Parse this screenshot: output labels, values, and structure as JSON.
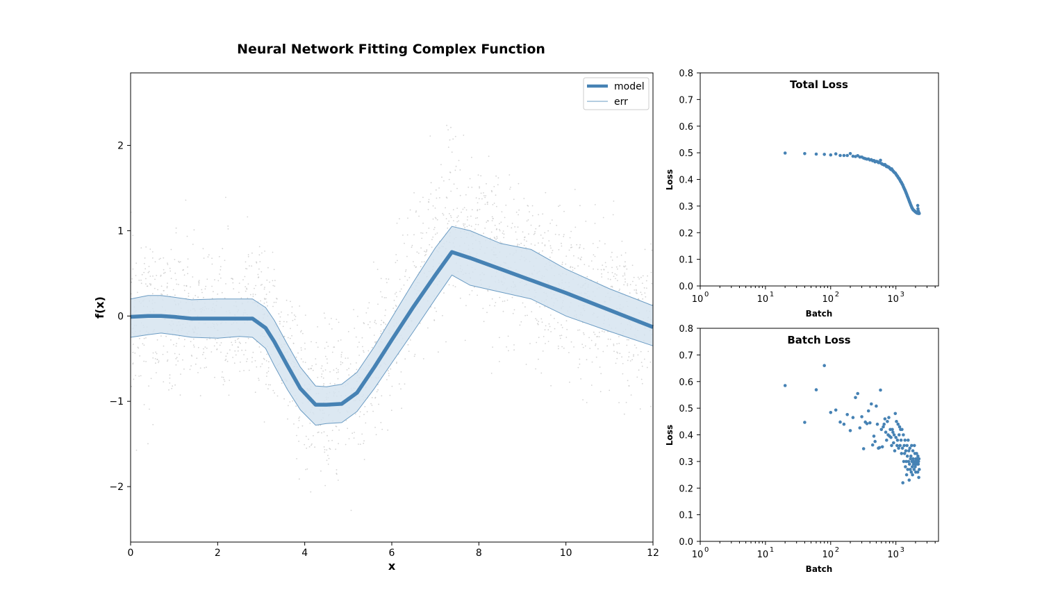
{
  "colors": {
    "model": "#4682b4",
    "band_fill": "#d6e4f0",
    "band_edge": "#6a9bc3",
    "scatter": "#c8c8c8",
    "loss_points": "#4682b4"
  },
  "chart_data": [
    {
      "id": "main",
      "type": "line",
      "title": "Neural Network Fitting Complex Function",
      "xlabel": "x",
      "ylabel": "f(x)",
      "xlim": [
        0,
        12
      ],
      "ylim": [
        -2.65,
        2.85
      ],
      "xticks": [
        "0",
        "2",
        "4",
        "6",
        "8",
        "10",
        "12"
      ],
      "yticks": [
        "−2",
        "−1",
        "0",
        "1",
        "2"
      ],
      "grid": false,
      "legend": {
        "placement": "top-right",
        "entries": [
          "model",
          "err"
        ]
      },
      "series": [
        {
          "name": "model",
          "x": [
            0,
            0.4,
            0.7,
            1.0,
            1.4,
            2.0,
            2.5,
            2.8,
            3.1,
            3.3,
            3.6,
            3.9,
            4.25,
            4.5,
            4.85,
            5.2,
            5.6,
            6.0,
            6.5,
            7.0,
            7.38,
            7.8,
            8.5,
            9.2,
            10.0,
            11.0,
            12.0
          ],
          "y": [
            -0.01,
            0.0,
            0.0,
            -0.01,
            -0.03,
            -0.03,
            -0.03,
            -0.03,
            -0.14,
            -0.3,
            -0.58,
            -0.85,
            -1.04,
            -1.04,
            -1.03,
            -0.9,
            -0.6,
            -0.28,
            0.11,
            0.48,
            0.75,
            0.68,
            0.55,
            0.42,
            0.27,
            0.07,
            -0.13
          ]
        },
        {
          "name": "err",
          "x": [
            0,
            0.4,
            0.7,
            1.0,
            1.4,
            2.0,
            2.5,
            2.8,
            3.1,
            3.3,
            3.6,
            3.9,
            4.25,
            4.5,
            4.85,
            5.2,
            5.6,
            6.0,
            6.5,
            7.0,
            7.38,
            7.8,
            8.5,
            9.2,
            10.0,
            11.0,
            12.0
          ],
          "upper": [
            0.2,
            0.24,
            0.24,
            0.22,
            0.19,
            0.2,
            0.2,
            0.2,
            0.1,
            -0.05,
            -0.33,
            -0.6,
            -0.82,
            -0.83,
            -0.8,
            -0.66,
            -0.36,
            -0.02,
            0.4,
            0.8,
            1.05,
            1.0,
            0.85,
            0.78,
            0.55,
            0.32,
            0.12
          ],
          "lower": [
            -0.25,
            -0.22,
            -0.2,
            -0.22,
            -0.25,
            -0.26,
            -0.24,
            -0.25,
            -0.38,
            -0.58,
            -0.86,
            -1.1,
            -1.28,
            -1.26,
            -1.25,
            -1.12,
            -0.85,
            -0.55,
            -0.18,
            0.2,
            0.48,
            0.36,
            0.28,
            0.2,
            0.0,
            -0.18,
            -0.35
          ]
        }
      ]
    },
    {
      "id": "total",
      "type": "scatter",
      "title": "Total Loss",
      "xlabel": "Batch",
      "ylabel": "Loss",
      "xscale": "log",
      "xlim": [
        1,
        4500
      ],
      "ylim": [
        0,
        0.8
      ],
      "xticks": [
        "10",
        "10",
        "10",
        "10"
      ],
      "xtick_exponents": [
        "0",
        "1",
        "2",
        "3"
      ],
      "yticks": [
        "0.0",
        "0.1",
        "0.2",
        "0.3",
        "0.4",
        "0.5",
        "0.6",
        "0.7",
        "0.8"
      ],
      "x": [
        20,
        40,
        60,
        80,
        100,
        120,
        140,
        160,
        180,
        200,
        220,
        240,
        260,
        280,
        300,
        320,
        340,
        360,
        380,
        400,
        420,
        440,
        460,
        480,
        500,
        520,
        540,
        560,
        580,
        600,
        620,
        640,
        660,
        680,
        700,
        720,
        740,
        760,
        780,
        800,
        820,
        840,
        860,
        880,
        900,
        920,
        940,
        960,
        980,
        1000,
        1020,
        1040,
        1060,
        1080,
        1100,
        1120,
        1140,
        1160,
        1180,
        1200,
        1220,
        1240,
        1260,
        1280,
        1300,
        1320,
        1340,
        1360,
        1380,
        1400,
        1420,
        1440,
        1460,
        1480,
        1500,
        1520,
        1540,
        1560,
        1580,
        1600,
        1620,
        1640,
        1660,
        1680,
        1700,
        1720,
        1740,
        1760,
        1780,
        1800,
        1820,
        1840,
        1860,
        1880,
        1900,
        1920,
        1940,
        1960,
        1980,
        2000,
        2020,
        2040,
        2060,
        2080,
        2100,
        2120,
        2140,
        2160,
        2180,
        2200,
        2220,
        2240,
        2260,
        2280
      ],
      "y": [
        0.499,
        0.497,
        0.495,
        0.494,
        0.492,
        0.496,
        0.49,
        0.49,
        0.49,
        0.497,
        0.487,
        0.486,
        0.489,
        0.484,
        0.484,
        0.48,
        0.478,
        0.476,
        0.477,
        0.473,
        0.474,
        0.47,
        0.471,
        0.466,
        0.468,
        0.467,
        0.463,
        0.463,
        0.472,
        0.46,
        0.457,
        0.456,
        0.454,
        0.456,
        0.452,
        0.448,
        0.449,
        0.446,
        0.446,
        0.443,
        0.44,
        0.437,
        0.44,
        0.436,
        0.432,
        0.43,
        0.427,
        0.425,
        0.424,
        0.42,
        0.417,
        0.414,
        0.412,
        0.408,
        0.405,
        0.403,
        0.4,
        0.397,
        0.393,
        0.39,
        0.388,
        0.384,
        0.381,
        0.378,
        0.373,
        0.37,
        0.366,
        0.363,
        0.36,
        0.356,
        0.352,
        0.349,
        0.345,
        0.341,
        0.337,
        0.334,
        0.33,
        0.327,
        0.323,
        0.32,
        0.316,
        0.313,
        0.31,
        0.306,
        0.303,
        0.3,
        0.297,
        0.294,
        0.292,
        0.29,
        0.288,
        0.286,
        0.285,
        0.284,
        0.283,
        0.282,
        0.281,
        0.28,
        0.279,
        0.278,
        0.277,
        0.277,
        0.276,
        0.275,
        0.274,
        0.274,
        0.273,
        0.302,
        0.29,
        0.282,
        0.272,
        0.276,
        0.275,
        0.272
      ]
    },
    {
      "id": "batch",
      "type": "scatter",
      "title": "Batch Loss",
      "xlabel": "Batch",
      "ylabel": "Loss",
      "xscale": "log",
      "xlim": [
        1,
        4500
      ],
      "ylim": [
        0,
        0.8
      ],
      "xticks": [
        "10",
        "10",
        "10",
        "10"
      ],
      "xtick_exponents": [
        "0",
        "1",
        "2",
        "3"
      ],
      "yticks": [
        "0.0",
        "0.1",
        "0.2",
        "0.3",
        "0.4",
        "0.5",
        "0.6",
        "0.7",
        "0.8"
      ],
      "x": [
        20,
        40,
        60,
        80,
        100,
        120,
        140,
        160,
        180,
        200,
        220,
        240,
        260,
        280,
        300,
        320,
        340,
        360,
        380,
        400,
        420,
        440,
        460,
        480,
        500,
        520,
        540,
        560,
        580,
        600,
        620,
        640,
        660,
        680,
        700,
        720,
        740,
        760,
        780,
        800,
        820,
        840,
        860,
        880,
        900,
        920,
        940,
        960,
        980,
        1000,
        1020,
        1040,
        1060,
        1080,
        1100,
        1120,
        1140,
        1160,
        1180,
        1200,
        1220,
        1240,
        1260,
        1280,
        1300,
        1320,
        1340,
        1360,
        1380,
        1400,
        1420,
        1440,
        1460,
        1480,
        1500,
        1520,
        1540,
        1560,
        1580,
        1600,
        1620,
        1640,
        1660,
        1680,
        1700,
        1720,
        1740,
        1760,
        1780,
        1800,
        1820,
        1840,
        1860,
        1880,
        1900,
        1920,
        1940,
        1960,
        1980,
        2000,
        2020,
        2040,
        2060,
        2080,
        2100,
        2120,
        2140,
        2160,
        2180,
        2200,
        2220,
        2240,
        2260,
        2280
      ],
      "y": [
        0.585,
        0.447,
        0.569,
        0.66,
        0.484,
        0.493,
        0.448,
        0.44,
        0.476,
        0.416,
        0.465,
        0.54,
        0.555,
        0.426,
        0.468,
        0.348,
        0.448,
        0.442,
        0.49,
        0.445,
        0.516,
        0.362,
        0.395,
        0.375,
        0.508,
        0.44,
        0.35,
        0.352,
        0.568,
        0.42,
        0.355,
        0.43,
        0.44,
        0.46,
        0.41,
        0.38,
        0.45,
        0.4,
        0.465,
        0.395,
        0.42,
        0.39,
        0.36,
        0.42,
        0.41,
        0.37,
        0.4,
        0.34,
        0.48,
        0.39,
        0.45,
        0.36,
        0.38,
        0.44,
        0.35,
        0.4,
        0.43,
        0.36,
        0.42,
        0.38,
        0.33,
        0.42,
        0.35,
        0.22,
        0.4,
        0.3,
        0.36,
        0.33,
        0.38,
        0.28,
        0.34,
        0.3,
        0.25,
        0.36,
        0.32,
        0.27,
        0.38,
        0.3,
        0.34,
        0.23,
        0.29,
        0.35,
        0.27,
        0.31,
        0.32,
        0.26,
        0.36,
        0.3,
        0.28,
        0.25,
        0.34,
        0.31,
        0.29,
        0.3,
        0.27,
        0.36,
        0.3,
        0.33,
        0.28,
        0.29,
        0.26,
        0.31,
        0.3,
        0.33,
        0.29,
        0.31,
        0.3,
        0.26,
        0.32,
        0.29,
        0.3,
        0.24,
        0.31,
        0.27
      ]
    }
  ]
}
